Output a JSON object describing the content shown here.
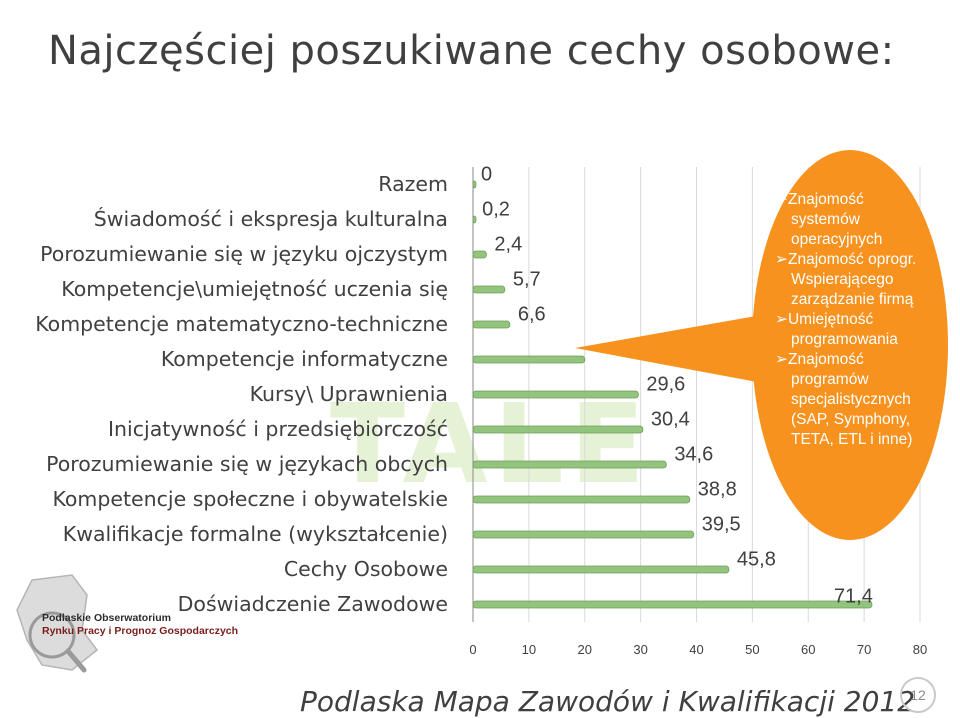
{
  "title": "Najczęściej poszukiwane cechy osobowe:",
  "footer": "Podlaska Mapa Zawodów i Kwalifikacji 2012",
  "page_number": "12",
  "logo": {
    "line1": "Podlaskie Obserwatorium",
    "line2": "Rynku Pracy i Prognoz Gospodarczych"
  },
  "callout": {
    "fill": "#f7921e",
    "lines": [
      "➢Znajomość",
      "systemów",
      "operacyjnych",
      "➢Znajomość oprogr.",
      "Wspierającego",
      "zarządzanie firmą",
      "➢Umiejętność",
      "programowania",
      "➢Znajomość",
      "programów",
      "specjalistycznych",
      "(SAP, Symphony,",
      "TETA, ETL i inne)"
    ]
  },
  "chart_data": {
    "type": "bar",
    "orientation": "horizontal",
    "categories": [
      "Razem",
      "Świadomość i ekspresja kulturalna",
      "Porozumiewanie się w języku ojczystym",
      "Kompetencje\\umiejętność uczenia się",
      "Kompetencje matematyczno-techniczne",
      "Kompetencje informatyczne",
      "Kursy\\ Uprawnienia",
      "Inicjatywność i przedsiębiorczość",
      "Porozumiewanie się w językach obcych",
      "Kompetencje społeczne i obywatelskie",
      "Kwalifikacje formalne (wykształcenie)",
      "Cechy Osobowe",
      "Doświadczenie Zawodowe"
    ],
    "values": [
      0,
      0.2,
      2.4,
      5.7,
      6.6,
      20,
      29.6,
      30.4,
      34.6,
      38.8,
      39.5,
      45.8,
      71.4
    ],
    "value_labels": [
      "0",
      "0,2",
      "2,4",
      "5,7",
      "6,6",
      "",
      "29,6",
      "30,4",
      "34,6",
      "38,8",
      "39,5",
      "45,8",
      "71,4"
    ],
    "xlim": [
      0,
      80
    ],
    "xticks": [
      "0",
      "10",
      "20",
      "30",
      "40",
      "50",
      "60",
      "70",
      "80"
    ],
    "bar_color": "#92c47d",
    "grid": true
  }
}
